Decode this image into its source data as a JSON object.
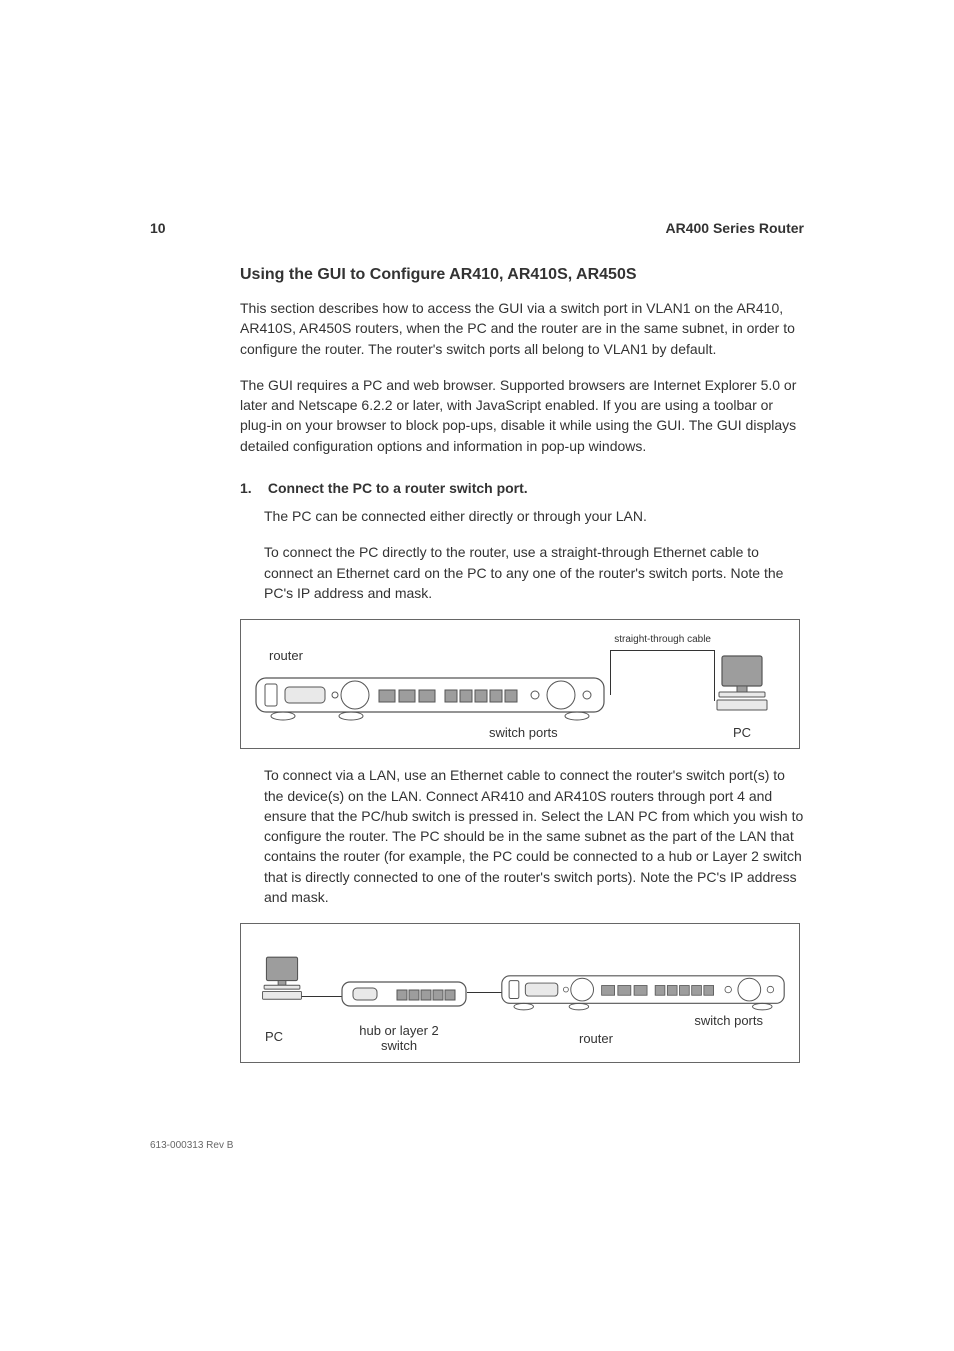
{
  "header": {
    "page_number": "10",
    "doc_title": "AR400 Series Router"
  },
  "section": {
    "title": "Using the GUI to Configure AR410, AR410S, AR450S",
    "para1": "This section describes how to access the GUI via a switch port in VLAN1 on the AR410, AR410S, AR450S routers, when the PC and the router are in the same subnet, in order to configure the router. The router's switch ports all belong to VLAN1 by default.",
    "para2": "The GUI requires a PC and web browser. Supported browsers are Internet Explorer 5.0 or later and Netscape 6.2.2 or later, with JavaScript enabled. If you are using a toolbar or plug-in on your browser to block pop-ups, disable it while using the GUI. The GUI displays detailed configuration options and information in pop-up windows."
  },
  "step1": {
    "number": "1.",
    "heading": "Connect the PC to a router switch port.",
    "body1": "The PC can be connected either directly or through your LAN.",
    "body2": "To connect the PC directly to the router, use a straight-through Ethernet cable to connect an Ethernet card on the PC to any one of the router's switch ports. Note the PC's IP address and mask.",
    "body3": "To connect via a LAN, use an Ethernet cable to connect the router's switch port(s) to the device(s) on the LAN. Connect AR410 and AR410S routers through port 4 and ensure that the PC/hub switch is pressed in. Select the LAN PC from which you wish to configure the router. The PC should be in the same subnet as the part of the LAN that contains the router (for example, the PC could be connected to a hub or Layer 2 switch that is directly connected to one of the router's switch ports). Note the PC's IP address and mask."
  },
  "figure1": {
    "cable_label": "straight-through cable",
    "router_label": "router",
    "switchports_label": "switch ports",
    "pc_label": "PC",
    "colors": {
      "outline": "#555555",
      "fill_light": "#e9e9e9",
      "fill_dark": "#8a8a8a",
      "screen": "#9d9d9d"
    }
  },
  "figure2": {
    "pc_label": "PC",
    "hub_label": "hub or layer 2\nswitch",
    "router_label": "router",
    "switchports_label": "switch ports",
    "colors": {
      "outline": "#555555",
      "fill_light": "#e9e9e9",
      "fill_dark": "#8a8a8a",
      "screen": "#9d9d9d"
    }
  },
  "footer": {
    "docref": "613-000313 Rev B"
  }
}
